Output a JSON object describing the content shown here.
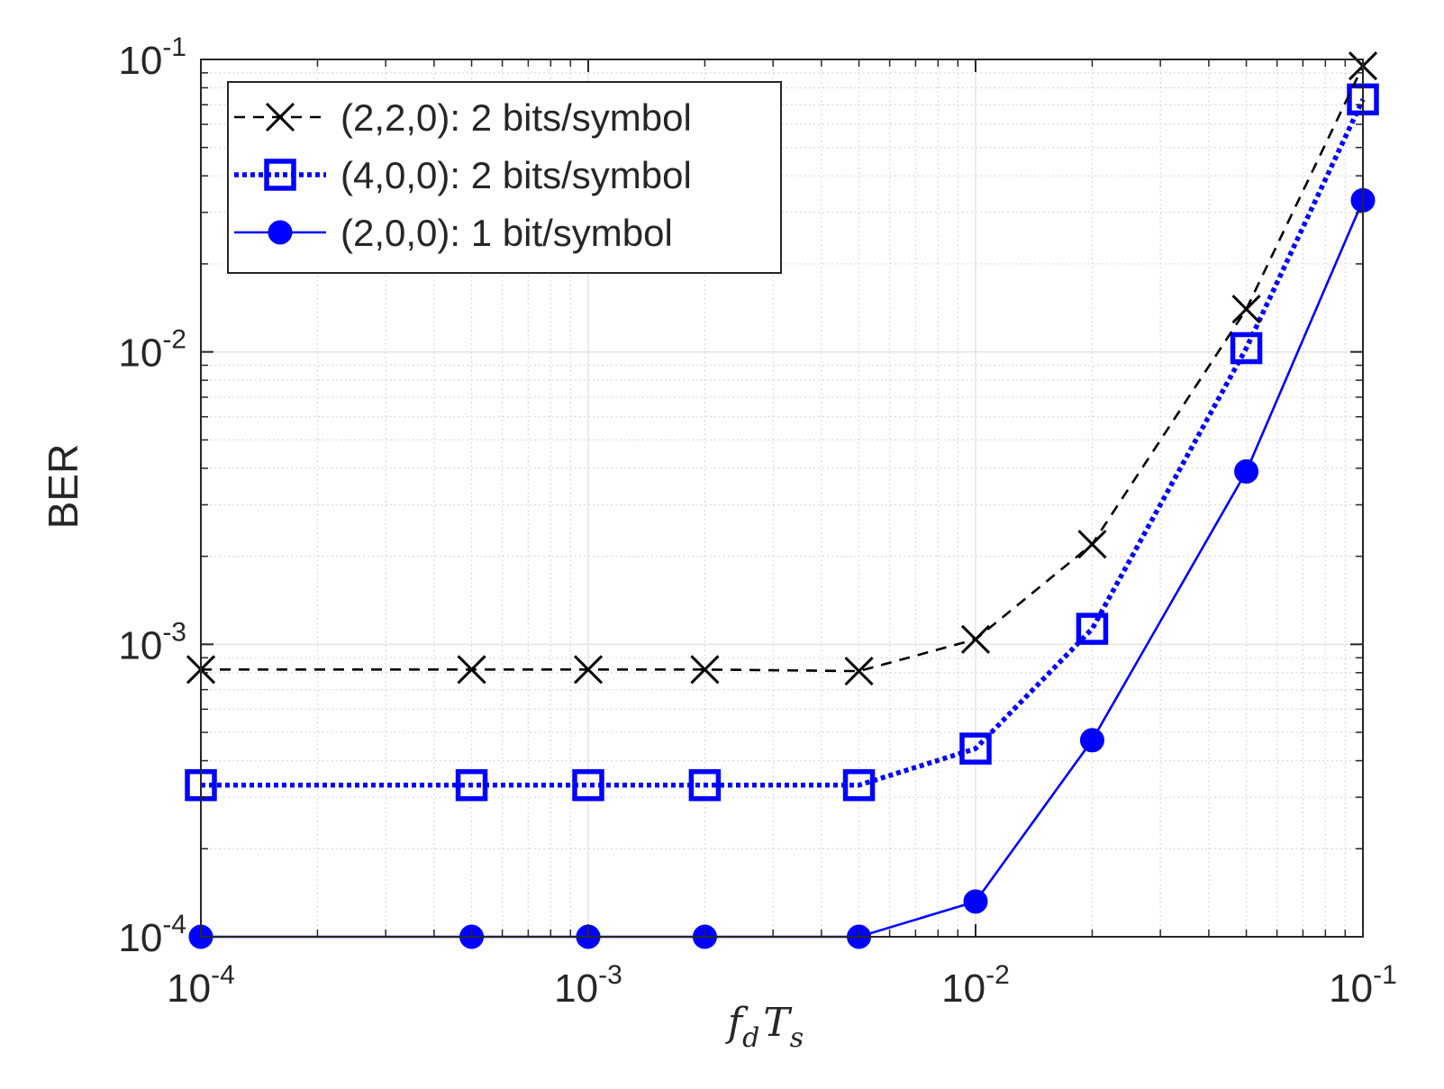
{
  "chart_data": {
    "type": "line",
    "xlabel": "f_d T_s",
    "xlabel_parts": {
      "f": "f",
      "d": "d",
      "T": "T",
      "s": "s"
    },
    "ylabel": "BER",
    "xscale": "log",
    "yscale": "log",
    "xlim": [
      0.0001,
      0.1
    ],
    "ylim": [
      0.0001,
      0.1
    ],
    "grid": true,
    "minor_grid": true,
    "legend_position": "top-left",
    "x_ticks": [
      {
        "value": 0.0001,
        "base": "10",
        "exp": "-4"
      },
      {
        "value": 0.001,
        "base": "10",
        "exp": "-3"
      },
      {
        "value": 0.01,
        "base": "10",
        "exp": "-2"
      },
      {
        "value": 0.1,
        "base": "10",
        "exp": "-1"
      }
    ],
    "y_ticks": [
      {
        "value": 0.0001,
        "base": "10",
        "exp": "-4"
      },
      {
        "value": 0.001,
        "base": "10",
        "exp": "-3"
      },
      {
        "value": 0.01,
        "base": "10",
        "exp": "-2"
      },
      {
        "value": 0.1,
        "base": "10",
        "exp": "-1"
      }
    ],
    "series": [
      {
        "name": "(2,2,0): 2 bits/symbol",
        "color": "#000000",
        "line_style": "dashed",
        "marker": "x",
        "x": [
          0.0001,
          0.0005,
          0.001,
          0.002,
          0.005,
          0.01,
          0.02,
          0.05,
          0.1
        ],
        "y": [
          0.00082,
          0.00082,
          0.00082,
          0.00082,
          0.00081,
          0.00104,
          0.0022,
          0.014,
          0.095
        ]
      },
      {
        "name": "(4,0,0): 2 bits/symbol",
        "color": "#0000ff",
        "line_style": "dotted",
        "marker": "square",
        "x": [
          0.0001,
          0.0005,
          0.001,
          0.002,
          0.005,
          0.01,
          0.02,
          0.05,
          0.1
        ],
        "y": [
          0.00033,
          0.00033,
          0.00033,
          0.00033,
          0.00033,
          0.00044,
          0.00113,
          0.0103,
          0.073
        ]
      },
      {
        "name": "(2,0,0): 1 bit/symbol",
        "color": "#0000ff",
        "line_style": "solid",
        "marker": "filled-circle",
        "x": [
          0.0001,
          0.0005,
          0.001,
          0.002,
          0.005,
          0.01,
          0.02,
          0.05,
          0.1
        ],
        "y": [
          0.0001,
          0.0001,
          0.0001,
          0.0001,
          0.0001,
          0.000132,
          0.00047,
          0.0039,
          0.033
        ]
      }
    ]
  }
}
